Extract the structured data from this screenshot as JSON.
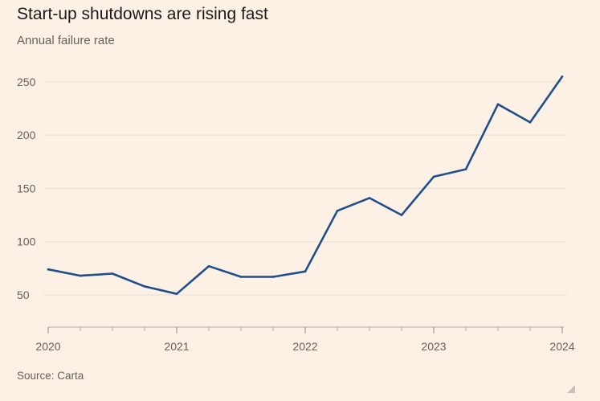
{
  "header": {
    "title": "Start-up shutdowns are rising fast",
    "subtitle": "Annual failure rate"
  },
  "footer": {
    "source": "Source: Carta"
  },
  "chart_data": {
    "type": "line",
    "title": "Start-up shutdowns are rising fast",
    "subtitle": "Annual failure rate",
    "xlabel": "",
    "ylabel": "",
    "xlim": [
      2020,
      2024
    ],
    "ylim": [
      20,
      265
    ],
    "yticks": [
      50,
      100,
      150,
      200,
      250
    ],
    "xticks": [
      "2020",
      "2021",
      "2022",
      "2023",
      "2024"
    ],
    "grid": true,
    "legend": "none",
    "series": [
      {
        "color": "#1f4e8c",
        "x": [
          2020.0,
          2020.25,
          2020.5,
          2020.75,
          2021.0,
          2021.25,
          2021.5,
          2021.75,
          2022.0,
          2022.25,
          2022.5,
          2022.75,
          2023.0,
          2023.25,
          2023.5,
          2023.75,
          2024.0
        ],
        "y": [
          74,
          68,
          70,
          58,
          51,
          77,
          67,
          67,
          72,
          129,
          141,
          125,
          161,
          168,
          229,
          212,
          255
        ]
      }
    ]
  },
  "colors": {
    "background": "#fdf1e6",
    "line": "#1f4e8c",
    "grid": "#eadfd5",
    "axis": "#b5aca4",
    "text": "#66605a"
  }
}
